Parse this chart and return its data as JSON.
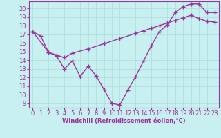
{
  "xlabel": "Windchill (Refroidissement éolien,°C)",
  "ylabel": "",
  "bg_color": "#c8f0f0",
  "line_color": "#993399",
  "grid_color": "#aadddd",
  "xlim": [
    -0.5,
    23.5
  ],
  "ylim": [
    8.5,
    20.8
  ],
  "yticks": [
    9,
    10,
    11,
    12,
    13,
    14,
    15,
    16,
    17,
    18,
    19,
    20
  ],
  "xticks": [
    0,
    1,
    2,
    3,
    4,
    5,
    6,
    7,
    8,
    9,
    10,
    11,
    12,
    13,
    14,
    15,
    16,
    17,
    18,
    19,
    20,
    21,
    22,
    23
  ],
  "line1_x": [
    0,
    1,
    2,
    3,
    4,
    5,
    6,
    7,
    8,
    9,
    10,
    11,
    12,
    13,
    14,
    15,
    16,
    17,
    18,
    19,
    20,
    21,
    22,
    23
  ],
  "line1_y": [
    17.3,
    16.8,
    14.9,
    14.5,
    13.0,
    13.9,
    12.1,
    13.3,
    12.2,
    10.6,
    9.0,
    8.8,
    10.5,
    12.1,
    13.9,
    15.7,
    17.3,
    18.1,
    19.5,
    20.2,
    20.5,
    20.5,
    19.5,
    19.5
  ],
  "line2_x": [
    0,
    2,
    3,
    4,
    5,
    7,
    9,
    11,
    13,
    14,
    15,
    16,
    17,
    18,
    19,
    20,
    21,
    22,
    23
  ],
  "line2_y": [
    17.3,
    14.9,
    14.6,
    14.3,
    14.8,
    15.3,
    15.9,
    16.5,
    17.1,
    17.4,
    17.7,
    18.0,
    18.3,
    18.6,
    18.9,
    19.2,
    18.8,
    18.5,
    18.4
  ],
  "marker": "+",
  "marker_size": 4,
  "line_width": 1.0,
  "tick_fontsize": 6,
  "xlabel_fontsize": 6
}
